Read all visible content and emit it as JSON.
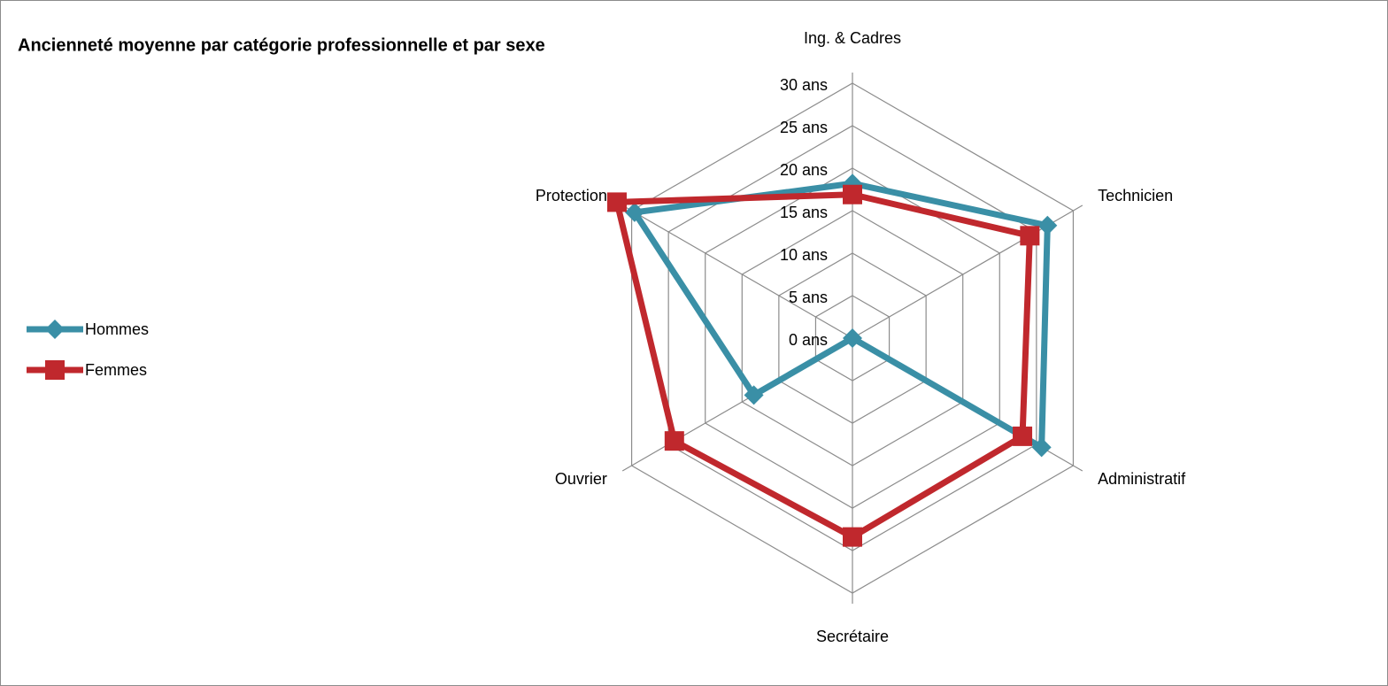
{
  "chart_data": {
    "type": "radar",
    "title": "Ancienneté moyenne par catégorie professionnelle et par sexe",
    "categories": [
      "Ing. & Cadres",
      "Technicien",
      "Administratif",
      "Secrétaire",
      "Ouvrier",
      "Protection"
    ],
    "series": [
      {
        "name": "Hommes",
        "color": "#3a8fa6",
        "marker": "diamond",
        "values": [
          18.2,
          26.5,
          25.7,
          0,
          13.4,
          29.6
        ]
      },
      {
        "name": "Femmes",
        "color": "#c0282d",
        "marker": "square",
        "values": [
          16.9,
          24.1,
          23.1,
          23.4,
          24.2,
          32.0
        ]
      }
    ],
    "ylim": [
      0,
      30
    ],
    "yticks": [
      {
        "value": 0,
        "label": "0 ans"
      },
      {
        "value": 5,
        "label": "5 ans"
      },
      {
        "value": 10,
        "label": "10 ans"
      },
      {
        "value": 15,
        "label": "15 ans"
      },
      {
        "value": 20,
        "label": "20 ans"
      },
      {
        "value": 25,
        "label": "25 ans"
      },
      {
        "value": 30,
        "label": "30 ans"
      }
    ],
    "grid": true,
    "legend": "left"
  }
}
